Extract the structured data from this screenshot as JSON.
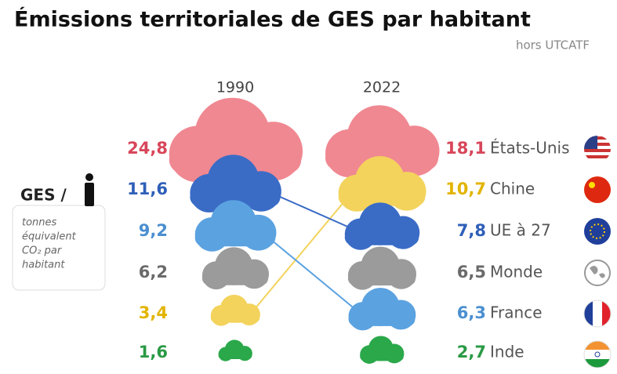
{
  "chart_data": {
    "type": "cloud",
    "title": "Émissions territoriales de GES par habitant",
    "subtitle": "hors UTCATF",
    "categories": [
      "1990",
      "2022"
    ],
    "legend": {
      "title": "GES /",
      "text": [
        "tonnes",
        "équivalent",
        "CO₂ par",
        "habitant"
      ]
    },
    "series": [
      {
        "name": "États-Unis",
        "color": "#f08892",
        "label_color": "#d8465a",
        "values": [
          24.8,
          18.1
        ],
        "value_labels": [
          "24,8",
          "18,1"
        ]
      },
      {
        "name": "Chine",
        "color": "#f3d35c",
        "label_color": "#e2b400",
        "values": [
          3.4,
          10.7
        ],
        "value_labels": [
          "3,4",
          "10,7"
        ]
      },
      {
        "name": "UE à 27",
        "color": "#3a6cc6",
        "label_color": "#2f5fb8",
        "values": [
          11.6,
          7.8
        ],
        "value_labels": [
          "11,6",
          "7,8"
        ]
      },
      {
        "name": "Monde",
        "color": "#9b9b9b",
        "label_color": "#6a6a6a",
        "values": [
          6.2,
          6.5
        ],
        "value_labels": [
          "6,2",
          "6,5"
        ]
      },
      {
        "name": "France",
        "color": "#5ba2e0",
        "label_color": "#4a8fd0",
        "values": [
          9.2,
          6.3
        ],
        "value_labels": [
          "9,2",
          "6,3"
        ]
      },
      {
        "name": "Inde",
        "color": "#2aa84a",
        "label_color": "#2a9a44",
        "values": [
          1.6,
          2.7
        ],
        "value_labels": [
          "1,6",
          "2,7"
        ]
      }
    ]
  }
}
